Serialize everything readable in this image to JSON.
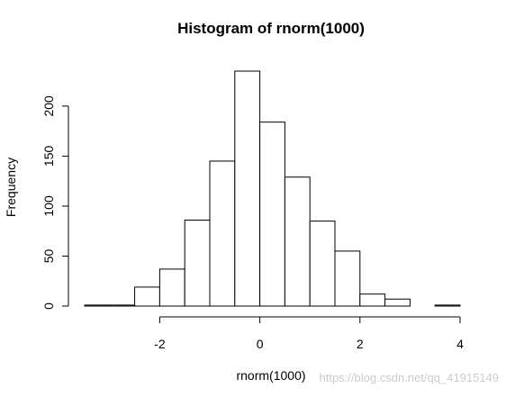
{
  "chart_data": {
    "type": "bar",
    "title": "Histogram of rnorm(1000)",
    "xlabel": "rnorm(1000)",
    "ylabel": "Frequency",
    "bin_width": 0.5,
    "bins": [
      {
        "x0": -3.5,
        "x1": -3.0,
        "count": 1
      },
      {
        "x0": -3.0,
        "x1": -2.5,
        "count": 1
      },
      {
        "x0": -2.5,
        "x1": -2.0,
        "count": 19
      },
      {
        "x0": -2.0,
        "x1": -1.5,
        "count": 37
      },
      {
        "x0": -1.5,
        "x1": -1.0,
        "count": 86
      },
      {
        "x0": -1.0,
        "x1": -0.5,
        "count": 145
      },
      {
        "x0": -0.5,
        "x1": 0.0,
        "count": 235
      },
      {
        "x0": 0.0,
        "x1": 0.5,
        "count": 184
      },
      {
        "x0": 0.5,
        "x1": 1.0,
        "count": 129
      },
      {
        "x0": 1.0,
        "x1": 1.5,
        "count": 85
      },
      {
        "x0": 1.5,
        "x1": 2.0,
        "count": 55
      },
      {
        "x0": 2.0,
        "x1": 2.5,
        "count": 12
      },
      {
        "x0": 2.5,
        "x1": 3.0,
        "count": 7
      },
      {
        "x0": 3.0,
        "x1": 3.5,
        "count": 0
      },
      {
        "x0": 3.5,
        "x1": 4.0,
        "count": 1
      }
    ],
    "x_ticks": [
      -2,
      0,
      2,
      4
    ],
    "x_tick_labels": [
      "-2",
      "0",
      "2",
      "4"
    ],
    "y_ticks": [
      0,
      50,
      100,
      150,
      200
    ],
    "y_tick_labels": [
      "0",
      "50",
      "100",
      "150",
      "200"
    ],
    "xlim": [
      -3.5,
      4.0
    ],
    "ylim": [
      0,
      235
    ],
    "grid": false,
    "bar_fill": "#ffffff",
    "bar_stroke": "#000000"
  },
  "watermark": "https://blog.csdn.net/qq_41915149"
}
